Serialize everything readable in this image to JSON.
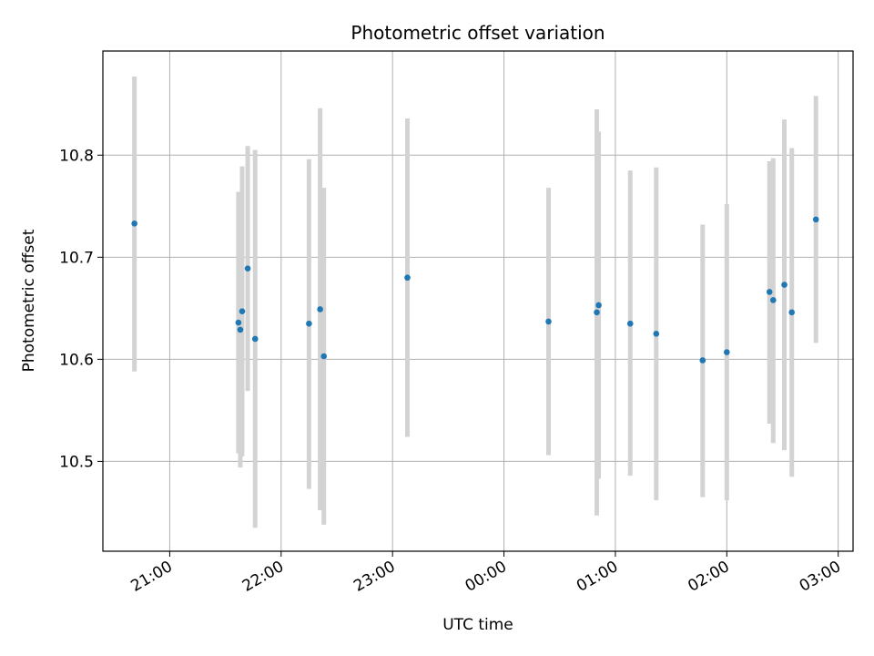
{
  "chart_data": {
    "type": "scatter",
    "title": "Photometric offset variation",
    "xlabel": "UTC time",
    "ylabel": "Photometric offset",
    "x_axis": {
      "kind": "time",
      "range": [
        "20:24",
        "03:08"
      ],
      "ticks": [
        "21:00",
        "22:00",
        "23:00",
        "00:00",
        "01:00",
        "02:00",
        "03:00"
      ],
      "tick_label_rotation_deg": 30
    },
    "y_axis": {
      "range": [
        10.412,
        10.902
      ],
      "ticks": [
        "10.5",
        "10.6",
        "10.7",
        "10.8"
      ]
    },
    "grid": true,
    "colors": {
      "marker": "#1f77b4",
      "errorbar": "#d3d3d3",
      "grid": "#b0b0b0"
    },
    "series": [
      {
        "points": [
          {
            "x": "20:41",
            "y": 10.733,
            "err_low": 10.588,
            "err_high": 10.877
          },
          {
            "x": "21:37",
            "y": 10.636,
            "err_low": 10.508,
            "err_high": 10.764
          },
          {
            "x": "21:38",
            "y": 10.629,
            "err_low": 10.494,
            "err_high": 10.764
          },
          {
            "x": "21:39",
            "y": 10.647,
            "err_low": 10.505,
            "err_high": 10.789
          },
          {
            "x": "21:42",
            "y": 10.689,
            "err_low": 10.569,
            "err_high": 10.809
          },
          {
            "x": "21:46",
            "y": 10.62,
            "err_low": 10.435,
            "err_high": 10.805
          },
          {
            "x": "22:15",
            "y": 10.635,
            "err_low": 10.473,
            "err_high": 10.796
          },
          {
            "x": "22:21",
            "y": 10.649,
            "err_low": 10.452,
            "err_high": 10.846
          },
          {
            "x": "22:23",
            "y": 10.603,
            "err_low": 10.438,
            "err_high": 10.768
          },
          {
            "x": "23:08",
            "y": 10.68,
            "err_low": 10.524,
            "err_high": 10.836
          },
          {
            "x": "00:24",
            "y": 10.637,
            "err_low": 10.506,
            "err_high": 10.768
          },
          {
            "x": "00:50",
            "y": 10.646,
            "err_low": 10.447,
            "err_high": 10.845
          },
          {
            "x": "00:51",
            "y": 10.653,
            "err_low": 10.483,
            "err_high": 10.823
          },
          {
            "x": "01:08",
            "y": 10.635,
            "err_low": 10.486,
            "err_high": 10.785
          },
          {
            "x": "01:22",
            "y": 10.625,
            "err_low": 10.462,
            "err_high": 10.788
          },
          {
            "x": "01:47",
            "y": 10.599,
            "err_low": 10.465,
            "err_high": 10.732
          },
          {
            "x": "02:00",
            "y": 10.607,
            "err_low": 10.462,
            "err_high": 10.752
          },
          {
            "x": "02:23",
            "y": 10.666,
            "err_low": 10.537,
            "err_high": 10.794
          },
          {
            "x": "02:25",
            "y": 10.658,
            "err_low": 10.518,
            "err_high": 10.797
          },
          {
            "x": "02:31",
            "y": 10.673,
            "err_low": 10.511,
            "err_high": 10.835
          },
          {
            "x": "02:35",
            "y": 10.646,
            "err_low": 10.485,
            "err_high": 10.807
          },
          {
            "x": "02:48",
            "y": 10.737,
            "err_low": 10.616,
            "err_high": 10.858
          }
        ]
      }
    ]
  }
}
